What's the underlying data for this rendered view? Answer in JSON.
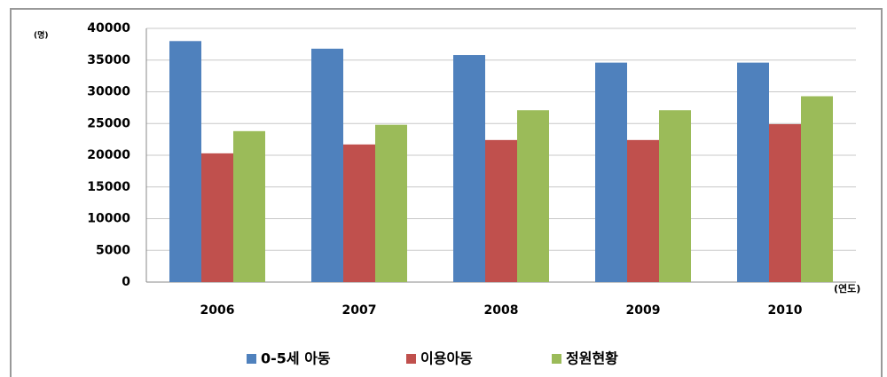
{
  "chart_data": {
    "type": "bar",
    "y_axis_label": "(명)",
    "x_axis_label": "(연도)",
    "categories": [
      "2006",
      "2007",
      "2008",
      "2009",
      "2010"
    ],
    "series": [
      {
        "name": "0-5세 아동",
        "color": "#4f81bd",
        "values": [
          38000,
          36800,
          35800,
          34600,
          34600
        ]
      },
      {
        "name": "이용아동",
        "color": "#c0504d",
        "values": [
          20300,
          21700,
          22400,
          22400,
          24900
        ]
      },
      {
        "name": "정원현황",
        "color": "#9bbb59",
        "values": [
          23800,
          24800,
          27100,
          27100,
          29300
        ]
      }
    ],
    "ylim": [
      0,
      40000
    ],
    "yticks": [
      0,
      5000,
      10000,
      15000,
      20000,
      25000,
      30000,
      35000,
      40000
    ],
    "grid": true,
    "legend": "bottom"
  }
}
